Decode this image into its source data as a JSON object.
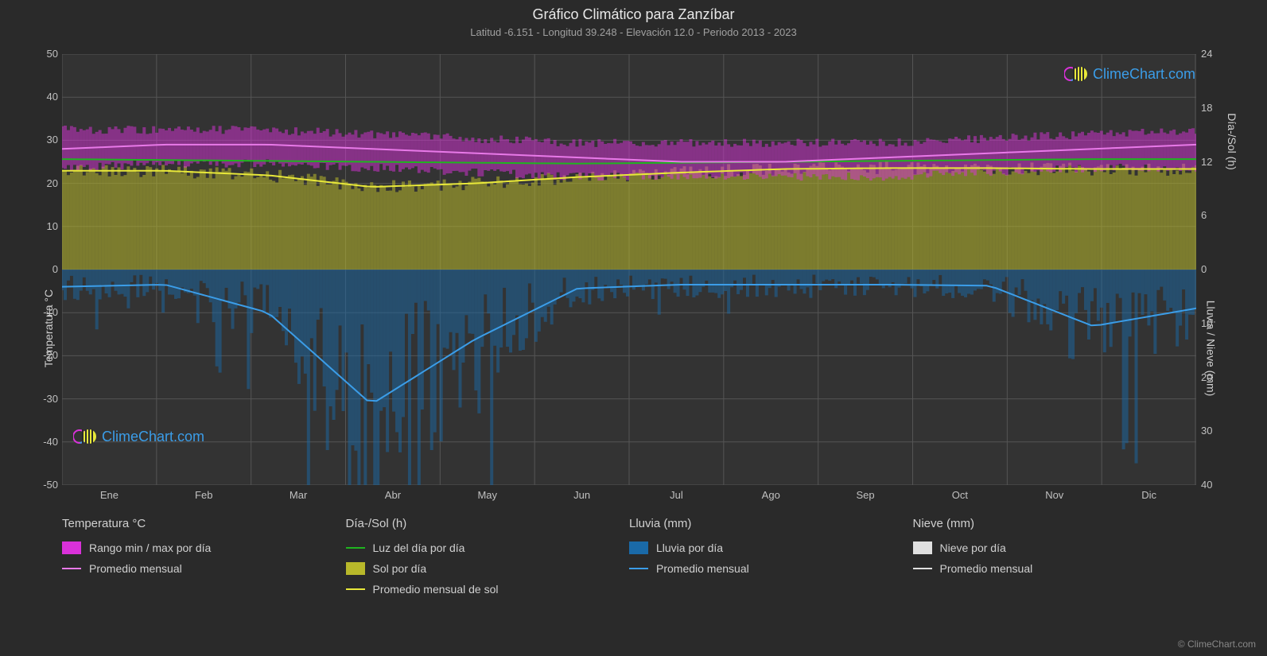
{
  "title": "Gráfico Climático para Zanzíbar",
  "subtitle": "Latitud -6.151 - Longitud 39.248 - Elevación 12.0 - Periodo 2013 - 2023",
  "axes": {
    "yleft": {
      "label": "Temperatura °C",
      "min": -50,
      "max": 50,
      "ticks": [
        -50,
        -40,
        -30,
        -20,
        -10,
        0,
        10,
        20,
        30,
        40,
        50
      ]
    },
    "yright_top": {
      "label": "Día-/Sol (h)",
      "min": 0,
      "max": 24,
      "ticks": [
        0,
        6,
        12,
        18,
        24
      ]
    },
    "yright_bottom": {
      "label": "Lluvia / Nieve (mm)",
      "min": 0,
      "max": 40,
      "ticks": [
        0,
        10,
        20,
        30,
        40
      ]
    },
    "x": {
      "labels": [
        "Ene",
        "Feb",
        "Mar",
        "Abr",
        "May",
        "Jun",
        "Jul",
        "Ago",
        "Sep",
        "Oct",
        "Nov",
        "Dic"
      ]
    }
  },
  "colors": {
    "background": "#2a2a2a",
    "plot_bg": "#333333",
    "grid": "#555555",
    "text": "#d0d0d0",
    "temp_range": "#d931d9",
    "temp_mean": "#e879e8",
    "daylight": "#1fb51f",
    "sun_area": "#b8b82a",
    "sun_mean": "#e8e83a",
    "rain_area": "#1a6aa8",
    "rain_mean": "#3b9de8",
    "snow": "#e0e0e0",
    "brand": "#3b9de8"
  },
  "series": {
    "temp_range_max": [
      32,
      32,
      32,
      31,
      30,
      29,
      29,
      29,
      29,
      30,
      31,
      32
    ],
    "temp_range_min": [
      24,
      25,
      25,
      24,
      23,
      22,
      22,
      22,
      22,
      23,
      24,
      24
    ],
    "temp_mean": [
      28,
      29,
      29,
      28,
      27,
      26,
      25,
      25,
      26,
      27,
      28,
      29
    ],
    "daylight": [
      12.3,
      12.2,
      12.1,
      12.0,
      11.9,
      11.8,
      11.9,
      12.0,
      12.1,
      12.2,
      12.3,
      12.3
    ],
    "sun_mean": [
      11.0,
      11.0,
      10.5,
      9.2,
      9.6,
      10.3,
      10.8,
      11.2,
      11.3,
      11.3,
      11.2,
      11.2
    ],
    "rain_mean": [
      3.2,
      2.8,
      8.0,
      25,
      13,
      3.5,
      2.8,
      2.8,
      2.8,
      3.0,
      10.5,
      7.2
    ]
  },
  "legend": {
    "col1": {
      "header": "Temperatura °C",
      "items": [
        {
          "type": "swatch",
          "color": "#d931d9",
          "label": "Rango min / max por día"
        },
        {
          "type": "line",
          "color": "#e879e8",
          "label": "Promedio mensual"
        }
      ]
    },
    "col2": {
      "header": "Día-/Sol (h)",
      "items": [
        {
          "type": "line",
          "color": "#1fb51f",
          "label": "Luz del día por día"
        },
        {
          "type": "swatch",
          "color": "#b8b82a",
          "label": "Sol por día"
        },
        {
          "type": "line",
          "color": "#e8e83a",
          "label": "Promedio mensual de sol"
        }
      ]
    },
    "col3": {
      "header": "Lluvia (mm)",
      "items": [
        {
          "type": "swatch",
          "color": "#1a6aa8",
          "label": "Lluvia por día"
        },
        {
          "type": "line",
          "color": "#3b9de8",
          "label": "Promedio mensual"
        }
      ]
    },
    "col4": {
      "header": "Nieve (mm)",
      "items": [
        {
          "type": "swatch",
          "color": "#e0e0e0",
          "label": "Nieve por día"
        },
        {
          "type": "line",
          "color": "#e0e0e0",
          "label": "Promedio mensual"
        }
      ]
    }
  },
  "watermark": "ClimeChart.com",
  "copyright": "© ClimeChart.com"
}
